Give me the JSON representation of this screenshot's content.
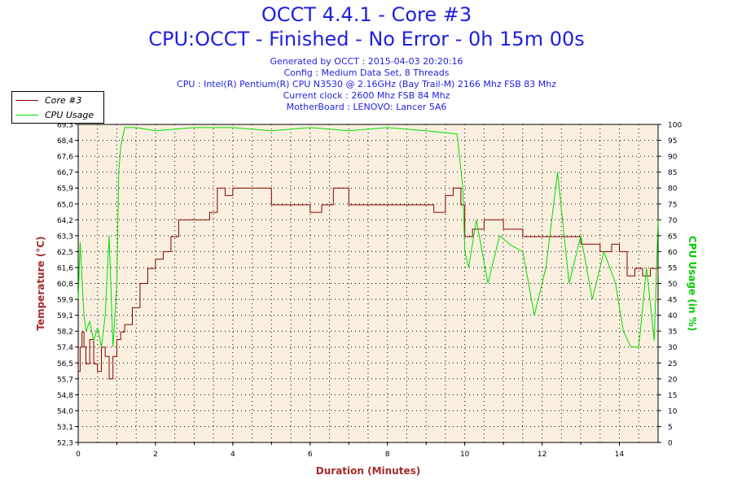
{
  "header": {
    "title": "OCCT 4.4.1 - Core #3",
    "subtitle": "CPU:OCCT - Finished - No Error - 0h 15m 00s",
    "info_lines": [
      "Generated by OCCT : 2015-04-03 20:20:16",
      "Config : Medium Data Set, 8 Threads",
      "CPU : Intel(R) Pentium(R) CPU N3530 @ 2.16GHz (Bay Trail-M) 2166 Mhz FSB 83 Mhz",
      "Current clock : 2600 Mhz FSB 84 Mhz",
      "MotherBoard : LENOVO: Lancer 5A6"
    ]
  },
  "colors": {
    "title": "#1f1fe0",
    "temperature": "#8b0000",
    "cpu_usage": "#00dd00",
    "plot_bg": "#fbf0e0",
    "grid": "#000000",
    "axis_label_temp": "#a52a2a",
    "axis_label_cpu": "#00cc00",
    "xlabel": "#a52a2a"
  },
  "chart_data": {
    "type": "line",
    "title": "OCCT 4.4.1 - Core #3",
    "xlabel": "Duration (Minutes)",
    "ylabel_left": "Temperature (°C)",
    "ylabel_right": "CPU Usage (in %)",
    "xlim": [
      0,
      15
    ],
    "x_ticks": [
      "0",
      "2",
      "4",
      "6",
      "8",
      "10",
      "12",
      "14"
    ],
    "ylim_left": [
      52.3,
      69.3
    ],
    "y_ticks_left": [
      "52,3",
      "53,1",
      "54,0",
      "54,8",
      "55,7",
      "56,5",
      "57,4",
      "58,2",
      "59,1",
      "59,9",
      "60,8",
      "61,6",
      "62,5",
      "63,3",
      "64,2",
      "65,0",
      "65,9",
      "66,7",
      "67,6",
      "68,4",
      "69,3"
    ],
    "ylim_right": [
      0,
      100
    ],
    "y_ticks_right": [
      "0",
      "5",
      "10",
      "15",
      "20",
      "25",
      "30",
      "35",
      "40",
      "45",
      "50",
      "55",
      "60",
      "65",
      "70",
      "75",
      "80",
      "85",
      "90",
      "95",
      "100"
    ],
    "grid": true,
    "legend_position": "top-left",
    "series": [
      {
        "name": "Core #3",
        "axis": "left",
        "x": [
          0,
          0.05,
          0.1,
          0.15,
          0.2,
          0.3,
          0.4,
          0.5,
          0.6,
          0.7,
          0.8,
          0.9,
          1.0,
          1.1,
          1.2,
          1.4,
          1.6,
          1.8,
          2.0,
          2.2,
          2.4,
          2.6,
          2.8,
          3.0,
          3.2,
          3.4,
          3.6,
          3.8,
          4.0,
          4.5,
          5.0,
          5.5,
          6.0,
          6.3,
          6.6,
          7.0,
          7.5,
          8.0,
          8.5,
          8.8,
          9.0,
          9.2,
          9.5,
          9.7,
          9.9,
          10.0,
          10.2,
          10.5,
          11.0,
          11.5,
          12.0,
          12.5,
          13.0,
          13.5,
          13.8,
          14.0,
          14.2,
          14.4,
          14.6,
          14.8,
          15.0
        ],
        "y": [
          56.1,
          57.4,
          58.2,
          57.4,
          56.5,
          57.8,
          56.5,
          56.1,
          57.4,
          56.9,
          55.7,
          56.9,
          57.8,
          58.2,
          58.6,
          59.5,
          60.8,
          61.6,
          62.1,
          62.5,
          63.3,
          64.2,
          64.2,
          64.2,
          64.2,
          64.6,
          65.9,
          65.5,
          65.9,
          65.9,
          65.0,
          65.0,
          64.6,
          65.0,
          65.9,
          65.0,
          65.0,
          65.0,
          65.0,
          65.0,
          65.0,
          64.6,
          65.5,
          65.9,
          65.0,
          63.3,
          63.7,
          64.2,
          63.7,
          63.3,
          63.3,
          63.3,
          62.9,
          62.5,
          62.9,
          62.5,
          61.2,
          61.6,
          61.2,
          61.6,
          61.2
        ]
      },
      {
        "name": "CPU Usage",
        "axis": "right",
        "x": [
          0,
          0.05,
          0.15,
          0.2,
          0.3,
          0.4,
          0.5,
          0.6,
          0.7,
          0.8,
          0.9,
          1.0,
          1.05,
          1.1,
          1.2,
          1.5,
          2.0,
          3.0,
          4.0,
          5.0,
          6.0,
          7.0,
          8.0,
          9.0,
          9.8,
          9.95,
          10.0,
          10.1,
          10.3,
          10.6,
          10.9,
          11.2,
          11.5,
          11.8,
          12.1,
          12.4,
          12.7,
          13.0,
          13.3,
          13.6,
          13.9,
          14.1,
          14.3,
          14.5,
          14.7,
          14.9,
          15.0
        ],
        "y": [
          45,
          63,
          40,
          35,
          38,
          32,
          36,
          30,
          40,
          65,
          30,
          50,
          85,
          93,
          99,
          99,
          98,
          99,
          99,
          98,
          99,
          98,
          99,
          98,
          97,
          80,
          60,
          55,
          70,
          50,
          65,
          62,
          60,
          40,
          55,
          85,
          50,
          65,
          45,
          60,
          50,
          35,
          30,
          30,
          55,
          32,
          70
        ]
      }
    ]
  }
}
